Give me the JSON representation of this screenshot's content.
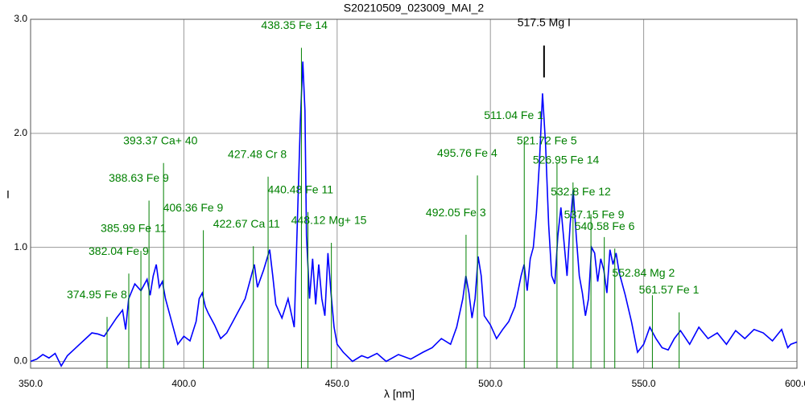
{
  "chart_data": {
    "type": "line",
    "title": "S20210509_023009_MAI_2",
    "x_label": "λ [nm]",
    "y_label": "I",
    "xlim": [
      350,
      600
    ],
    "ylim": [
      -0.06,
      3.0
    ],
    "xticks": [
      {
        "value": 350,
        "label": "350.0"
      },
      {
        "value": 400,
        "label": "400.0"
      },
      {
        "value": 450,
        "label": "450.0"
      },
      {
        "value": 500,
        "label": "500.0"
      },
      {
        "value": 550,
        "label": "550.0"
      },
      {
        "value": 600,
        "label": "600.0"
      }
    ],
    "yticks": [
      {
        "value": 0,
        "label": "0.0"
      },
      {
        "value": 1,
        "label": "1.0"
      },
      {
        "value": 2,
        "label": "2.0"
      },
      {
        "value": 3,
        "label": "3.0"
      }
    ],
    "grid": true,
    "x": [
      350,
      352,
      354,
      356,
      358,
      360,
      362,
      364,
      366,
      368,
      370,
      372,
      374,
      376,
      378,
      380,
      381,
      382,
      384,
      386,
      388,
      389,
      390,
      391,
      392,
      393,
      394,
      396,
      398,
      400,
      402,
      404,
      405,
      406,
      407,
      408,
      410,
      412,
      414,
      416,
      418,
      420,
      422,
      423,
      424,
      426,
      428,
      429,
      430,
      432,
      434,
      436,
      437,
      438,
      438.8,
      439.5,
      440,
      441,
      442,
      443,
      444,
      445,
      446,
      447,
      448,
      449,
      450,
      452,
      455,
      458,
      460,
      463,
      466,
      470,
      474,
      478,
      481,
      484,
      487,
      489,
      491,
      492,
      493,
      494,
      495,
      496,
      497,
      498,
      500,
      502,
      504,
      506,
      508,
      510,
      511,
      512,
      513,
      514,
      515,
      516,
      517,
      518,
      519,
      520,
      521,
      522,
      523,
      524,
      525,
      526,
      527,
      528,
      529,
      530,
      531,
      532,
      533,
      534,
      535,
      536,
      537,
      538,
      539,
      540,
      541,
      542,
      544,
      546,
      548,
      550,
      552,
      554,
      556,
      558,
      560,
      562,
      565,
      568,
      571,
      574,
      577,
      580,
      583,
      586,
      589,
      592,
      595,
      597,
      598,
      600
    ],
    "series": [
      {
        "color": "#0000ff",
        "values": [
          0.0,
          0.02,
          0.06,
          0.03,
          0.07,
          -0.04,
          0.05,
          0.1,
          0.15,
          0.2,
          0.25,
          0.24,
          0.22,
          0.3,
          0.38,
          0.45,
          0.28,
          0.55,
          0.68,
          0.62,
          0.72,
          0.58,
          0.75,
          0.85,
          0.65,
          0.7,
          0.55,
          0.35,
          0.15,
          0.22,
          0.18,
          0.35,
          0.55,
          0.6,
          0.48,
          0.42,
          0.32,
          0.2,
          0.25,
          0.35,
          0.45,
          0.55,
          0.75,
          0.85,
          0.65,
          0.8,
          0.98,
          0.75,
          0.5,
          0.38,
          0.55,
          0.3,
          1.2,
          2.1,
          2.63,
          2.2,
          1.1,
          0.55,
          0.9,
          0.5,
          0.85,
          0.55,
          0.4,
          0.95,
          0.6,
          0.3,
          0.15,
          0.08,
          0.0,
          0.05,
          0.03,
          0.07,
          0.0,
          0.06,
          0.02,
          0.08,
          0.12,
          0.2,
          0.15,
          0.3,
          0.55,
          0.75,
          0.6,
          0.38,
          0.55,
          0.92,
          0.75,
          0.4,
          0.32,
          0.2,
          0.28,
          0.35,
          0.48,
          0.75,
          0.85,
          0.62,
          0.9,
          1.0,
          1.3,
          1.75,
          2.35,
          1.9,
          1.2,
          0.75,
          0.68,
          1.1,
          1.35,
          1.05,
          0.75,
          1.2,
          1.5,
          1.1,
          0.75,
          0.6,
          0.4,
          0.55,
          1.0,
          0.95,
          0.7,
          0.9,
          0.8,
          0.6,
          0.98,
          0.85,
          0.95,
          0.78,
          0.58,
          0.35,
          0.08,
          0.15,
          0.3,
          0.2,
          0.12,
          0.1,
          0.2,
          0.27,
          0.15,
          0.3,
          0.2,
          0.25,
          0.15,
          0.27,
          0.2,
          0.28,
          0.25,
          0.18,
          0.28,
          0.12,
          0.15,
          0.17
        ]
      }
    ],
    "marker_color": "#008000",
    "markers": [
      {
        "label": "374.95 Fe 8",
        "x": 374.95,
        "y": 0.39
      },
      {
        "label": "382.04 Fe 9",
        "x": 382.04,
        "y": 0.77
      },
      {
        "label": "385.99 Fe 11",
        "x": 385.99,
        "y": 0.97
      },
      {
        "label": "388.63 Fe 9",
        "x": 388.63,
        "y": 1.41
      },
      {
        "label": "393.37 Ca+ 40",
        "x": 393.37,
        "y": 1.74
      },
      {
        "label": "406.36 Fe 9",
        "x": 406.36,
        "y": 1.15
      },
      {
        "label": "422.67 Ca 11",
        "x": 422.67,
        "y": 1.01
      },
      {
        "label": "427.48 Cr 8",
        "x": 427.48,
        "y": 1.62
      },
      {
        "label": "438.35 Fe 14",
        "x": 438.35,
        "y": 2.75
      },
      {
        "label": "440.48 Fe 11",
        "x": 440.48,
        "y": 1.31
      },
      {
        "label": "448.12 Mg+ 15",
        "x": 448.12,
        "y": 1.04
      },
      {
        "label": "492.05 Fe 3",
        "x": 492.05,
        "y": 1.11
      },
      {
        "label": "495.76 Fe 4",
        "x": 495.76,
        "y": 1.63
      },
      {
        "label": "511.04 Fe 1",
        "x": 511.04,
        "y": 1.96
      },
      {
        "label": "521.72 Fe 5",
        "x": 521.72,
        "y": 1.74
      },
      {
        "label": "526.95 Fe 14",
        "x": 526.95,
        "y": 1.57
      },
      {
        "label": "532.8 Fe 12",
        "x": 532.8,
        "y": 1.29
      },
      {
        "label": "537.15 Fe 9",
        "x": 537.15,
        "y": 1.09
      },
      {
        "label": "540.58 Fe 6",
        "x": 540.58,
        "y": 0.99
      },
      {
        "label": "552.84 Mg 2",
        "x": 552.84,
        "y": 0.58
      },
      {
        "label": "561.57 Fe 1",
        "x": 561.57,
        "y": 0.43
      }
    ],
    "main_marker": {
      "label": "517.5 Mg I",
      "x": 517.5,
      "ymin": 2.49,
      "ymax": 2.77,
      "color": "#000000"
    }
  }
}
